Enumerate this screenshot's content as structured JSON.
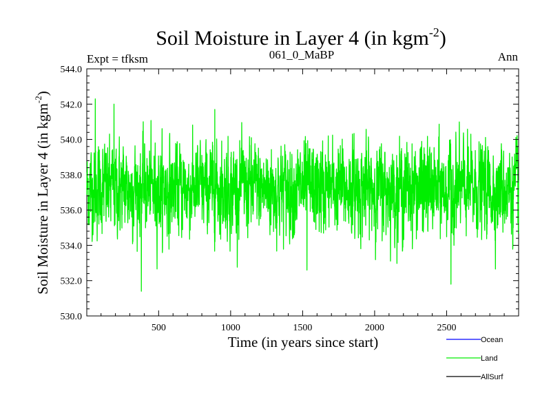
{
  "chart_data": {
    "type": "line",
    "title": "Soil Moisture in Layer 4 (in kgm",
    "title_sup": "-2",
    "title_close": ")",
    "subtitle_left": "Expt = tfksm",
    "subtitle_center": "061_0_MaBP",
    "subtitle_right": "Ann",
    "xlabel": "Time (in years since start)",
    "ylabel": "Soil Moisture in Layer 4 (in kgm",
    "ylabel_sup": "-2",
    "ylabel_close": ")",
    "xlim": [
      1,
      3000
    ],
    "ylim": [
      530.0,
      544.0
    ],
    "xticks": [
      500,
      1000,
      1500,
      2000,
      2500
    ],
    "xtick_labels": [
      "500",
      "1000",
      "1500",
      "2000",
      "2500"
    ],
    "yticks": [
      530,
      532,
      534,
      536,
      538,
      540,
      542,
      544
    ],
    "ytick_labels": [
      "530.0",
      "532.0",
      "534.0",
      "536.0",
      "538.0",
      "540.0",
      "542.0",
      "544.0"
    ],
    "series": [
      {
        "name": "Ocean",
        "color": "#0000ff",
        "values": []
      },
      {
        "name": "Land",
        "color": "#00ee00",
        "mean": 537.2,
        "std": 1.25,
        "min": 531.4,
        "max": 542.3,
        "n_years": 3000
      },
      {
        "name": "AllSurf",
        "color": "#000000",
        "values": []
      }
    ],
    "extremes": [
      {
        "year": 60,
        "value": 542.3
      },
      {
        "year": 190,
        "value": 542.0
      },
      {
        "year": 380,
        "value": 531.4
      },
      {
        "year": 890,
        "value": 541.7
      },
      {
        "year": 1530,
        "value": 532.6
      },
      {
        "year": 2530,
        "value": 531.8
      }
    ],
    "legend": [
      "Ocean",
      "Land",
      "AllSurf"
    ]
  }
}
